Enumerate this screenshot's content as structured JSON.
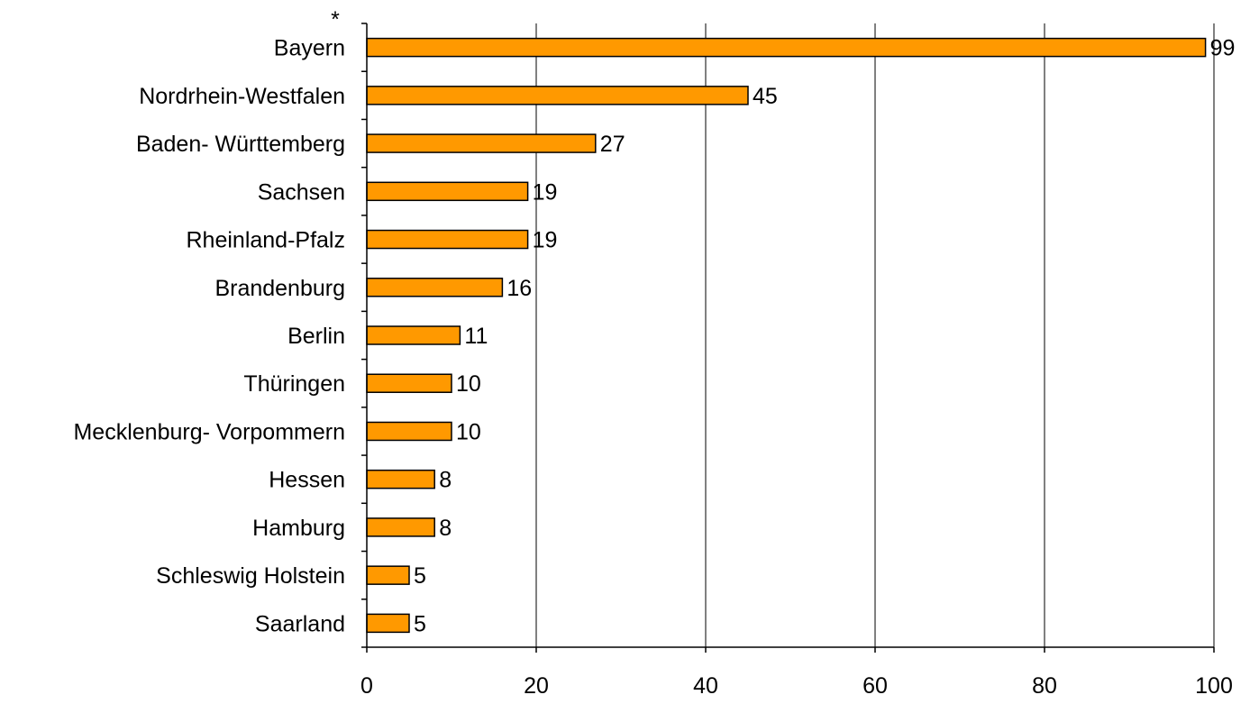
{
  "chart_data": {
    "type": "bar",
    "orientation": "horizontal",
    "marker": "*",
    "categories": [
      "Bayern",
      "Nordrhein-Westfalen",
      "Baden- Württemberg",
      "Sachsen",
      "Rheinland-Pfalz",
      "Brandenburg",
      "Berlin",
      "Thüringen",
      "Mecklenburg- Vorpommern",
      "Hessen",
      "Hamburg",
      "Schleswig Holstein",
      "Saarland"
    ],
    "values": [
      99,
      45,
      27,
      19,
      19,
      16,
      11,
      10,
      10,
      8,
      8,
      5,
      5
    ],
    "xlim": [
      0,
      100
    ],
    "xticks": [
      0,
      20,
      40,
      60,
      80,
      100
    ],
    "grid": "vertical",
    "legend": "none",
    "colors": {
      "bar": "#ff9900",
      "bar_stroke": "#000000",
      "grid": "#000000"
    }
  }
}
